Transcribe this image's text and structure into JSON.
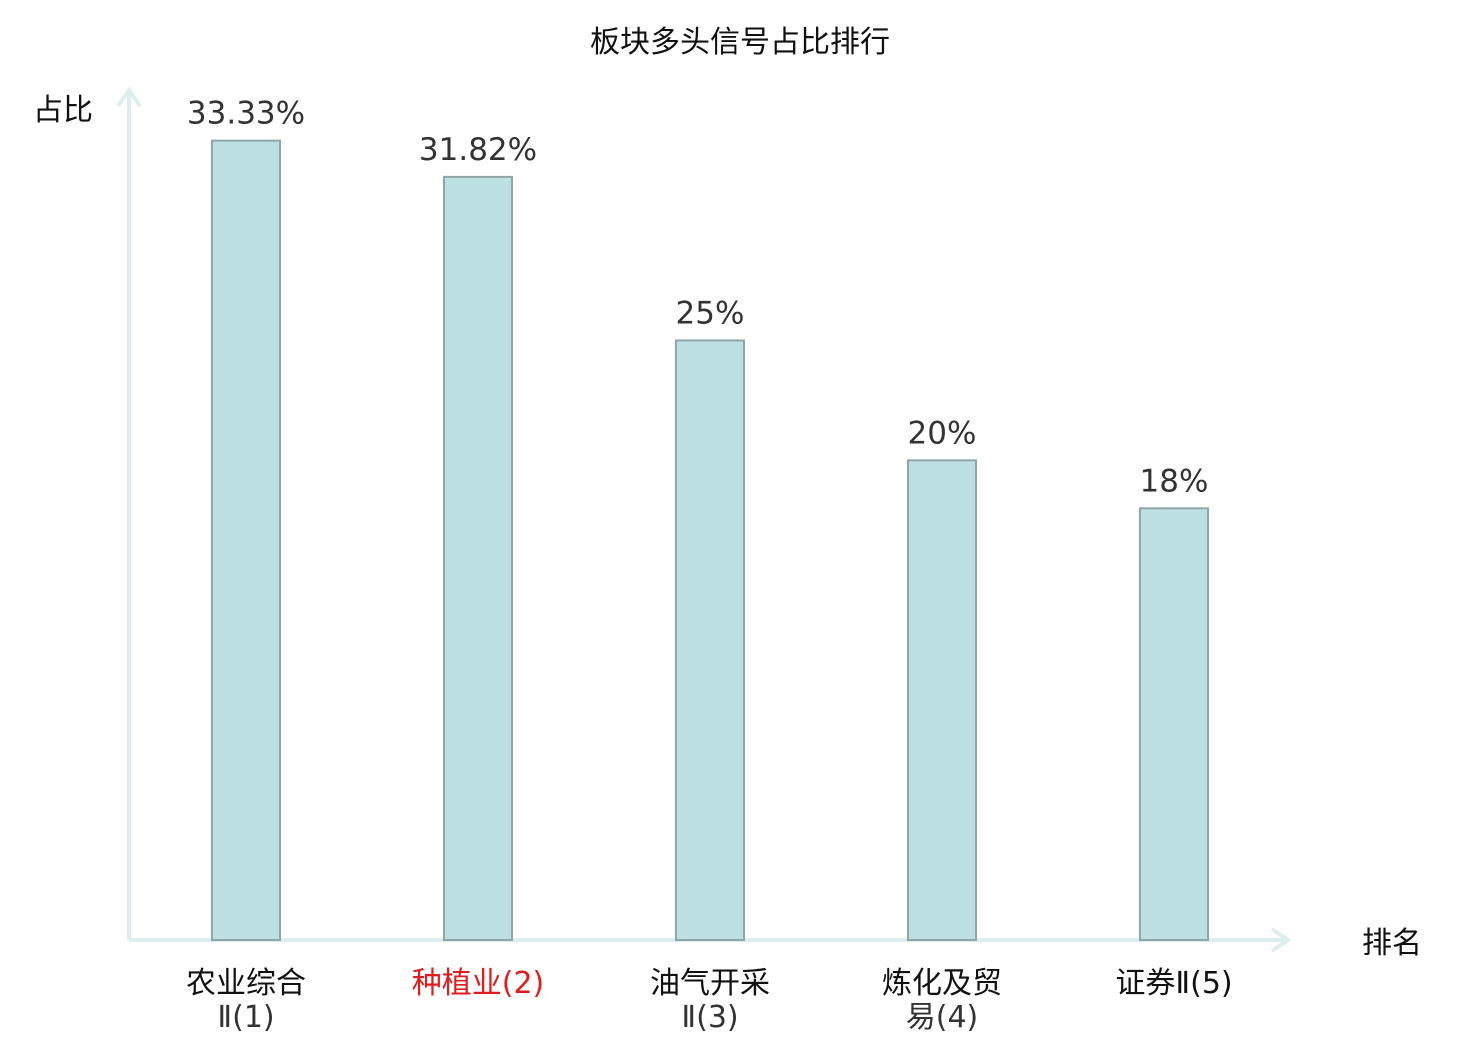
{
  "chart_data": {
    "type": "bar",
    "title": "板块多头信号占比排行",
    "ylabel": "占比",
    "xlabel": "排名",
    "categories": [
      [
        "农业综合",
        "Ⅱ(1)"
      ],
      [
        "种植业(2)"
      ],
      [
        "油气开采",
        "Ⅱ(3)"
      ],
      [
        "炼化及贸",
        "易(4)"
      ],
      [
        "证券Ⅱ(5)"
      ]
    ],
    "values": [
      33.33,
      31.82,
      25,
      20,
      18
    ],
    "value_labels": [
      "33.33%",
      "31.82%",
      "25%",
      "20%",
      "18%"
    ],
    "highlight_index": 1,
    "ylim": [
      0,
      34.4
    ],
    "grid": false,
    "colors": {
      "bar_fill": "#bde0e2",
      "bar_stroke": "#8fa6a8",
      "axis": "#dcefee",
      "highlight_text": "#e01c1c"
    }
  }
}
